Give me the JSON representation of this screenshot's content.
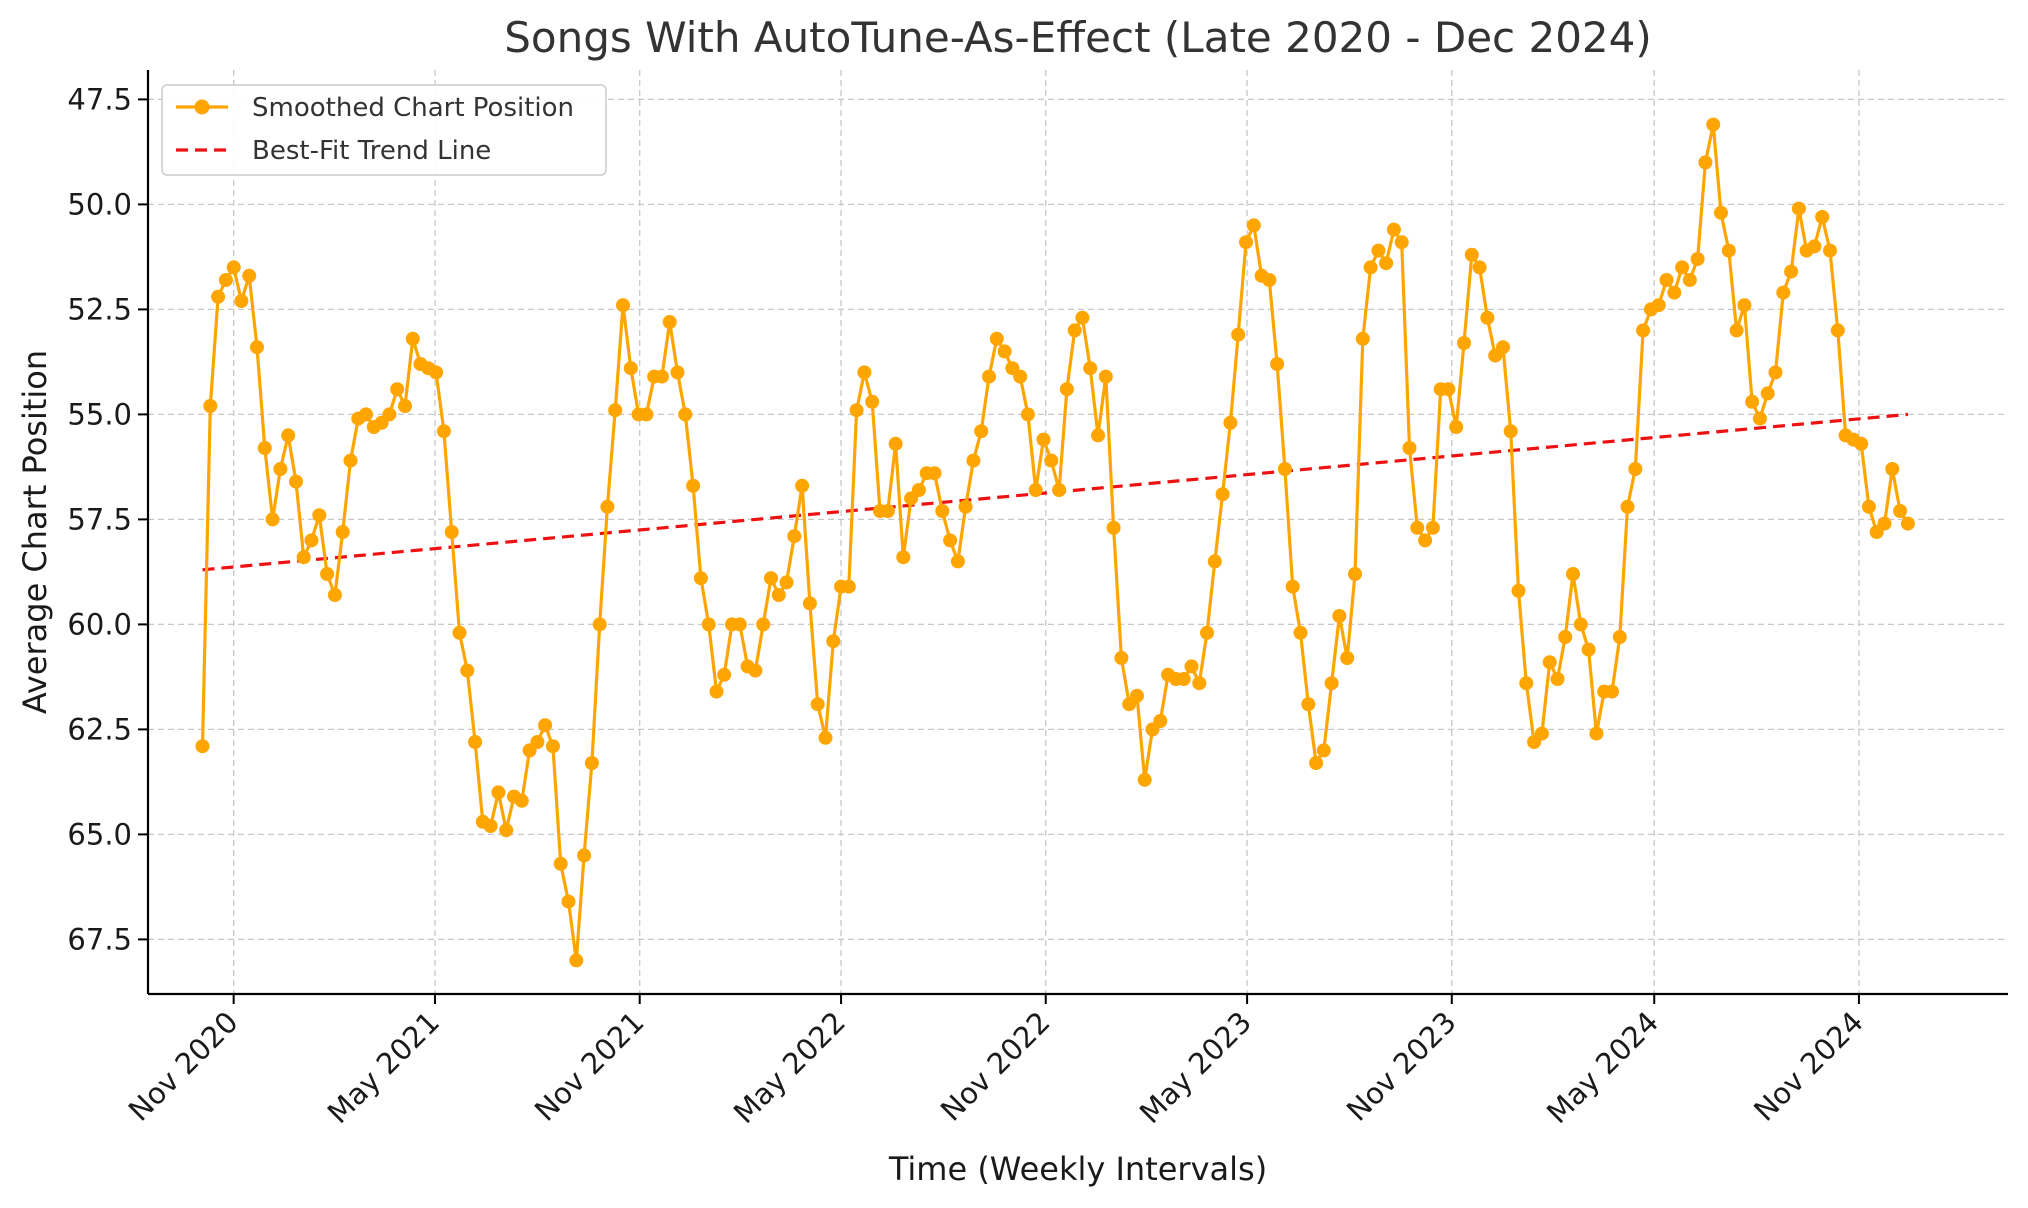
{
  "chart_data": {
    "type": "line",
    "title": "Songs With AutoTune-As-Effect (Late 2020 - Dec 2024)",
    "xlabel": "Time (Weekly Intervals)",
    "ylabel": "Average Chart Position",
    "y_inverted": true,
    "ylim": [
      68.8,
      46.8
    ],
    "xlim": [
      "2020-08-16",
      "2025-03-15"
    ],
    "y_ticks": [
      47.5,
      50.0,
      52.5,
      55.0,
      57.5,
      60.0,
      62.5,
      65.0,
      67.5
    ],
    "y_tick_labels": [
      "47.5",
      "50.0",
      "52.5",
      "55.0",
      "57.5",
      "60.0",
      "62.5",
      "65.0",
      "67.5"
    ],
    "x_ticks": [
      "2020-11-01",
      "2021-05-01",
      "2021-11-01",
      "2022-05-01",
      "2022-11-01",
      "2023-05-01",
      "2023-11-01",
      "2024-05-01",
      "2024-11-01"
    ],
    "x_tick_labels": [
      "Nov 2020",
      "May 2021",
      "Nov 2021",
      "May 2022",
      "Nov 2022",
      "May 2023",
      "Nov 2023",
      "May 2024",
      "Nov 2024"
    ],
    "grid": true,
    "legend_position": "top-left",
    "series": [
      {
        "name": "Smoothed Chart Position",
        "color": "#FFA500",
        "style": "solid-with-markers",
        "x_start": "2020-10-04",
        "x_step_days": 7,
        "values": [
          62.9,
          54.8,
          52.2,
          51.8,
          51.5,
          52.3,
          51.7,
          53.4,
          55.8,
          57.5,
          56.3,
          55.5,
          56.6,
          58.4,
          58.0,
          57.4,
          58.8,
          59.3,
          57.8,
          56.1,
          55.1,
          55.0,
          55.3,
          55.2,
          55.0,
          54.4,
          54.8,
          53.2,
          53.8,
          53.9,
          54.0,
          55.4,
          57.8,
          60.2,
          61.1,
          62.8,
          64.7,
          64.8,
          64.0,
          64.9,
          64.1,
          64.2,
          63.0,
          62.8,
          62.4,
          62.9,
          65.7,
          66.6,
          68.0,
          65.5,
          63.3,
          60.0,
          57.2,
          54.9,
          52.4,
          53.9,
          55.0,
          55.0,
          54.1,
          54.1,
          52.8,
          54.0,
          55.0,
          56.7,
          58.9,
          60.0,
          61.6,
          61.2,
          60.0,
          60.0,
          61.0,
          61.1,
          60.0,
          58.9,
          59.3,
          59.0,
          57.9,
          56.7,
          59.5,
          61.9,
          62.7,
          60.4,
          59.1,
          59.1,
          54.9,
          54.0,
          54.7,
          57.3,
          57.3,
          55.7,
          58.4,
          57.0,
          56.8,
          56.4,
          56.4,
          57.3,
          58.0,
          58.5,
          57.2,
          56.1,
          55.4,
          54.1,
          53.2,
          53.5,
          53.9,
          54.1,
          55.0,
          56.8,
          55.6,
          56.1,
          56.8,
          54.4,
          53.0,
          52.7,
          53.9,
          55.5,
          54.1,
          57.7,
          60.8,
          61.9,
          61.7,
          63.7,
          62.5,
          62.3,
          61.2,
          61.3,
          61.3,
          61.0,
          61.4,
          60.2,
          58.5,
          56.9,
          55.2,
          53.1,
          50.9,
          50.5,
          51.7,
          51.8,
          53.8,
          56.3,
          59.1,
          60.2,
          61.9,
          63.3,
          63.0,
          61.4,
          59.8,
          60.8,
          58.8,
          53.2,
          51.5,
          51.1,
          51.4,
          50.6,
          50.9,
          55.8,
          57.7,
          58.0,
          57.7,
          54.4,
          54.4,
          55.3,
          53.3,
          51.2,
          51.5,
          52.7,
          53.6,
          53.4,
          55.4,
          59.2,
          61.4,
          62.8,
          62.6,
          60.9,
          61.3,
          60.3,
          58.8,
          60.0,
          60.6,
          62.6,
          61.6,
          61.6,
          60.3,
          57.2,
          56.3,
          53.0,
          52.5,
          52.4,
          51.8,
          52.1,
          51.5,
          51.8,
          51.3,
          49.0,
          48.1,
          50.2,
          51.1,
          53.0,
          52.4,
          54.7,
          55.1,
          54.5,
          54.0,
          52.1,
          51.6,
          50.1,
          51.1,
          51.0,
          50.3,
          51.1,
          53.0,
          55.5,
          55.6,
          55.7,
          57.2,
          57.8,
          57.6,
          56.3,
          57.3,
          57.6
        ]
      },
      {
        "name": "Best-Fit Trend Line",
        "color": "#EE1111",
        "style": "dashed",
        "x": [
          "2020-10-04",
          "2024-12-15"
        ],
        "values": [
          58.7,
          55.0
        ]
      }
    ]
  }
}
